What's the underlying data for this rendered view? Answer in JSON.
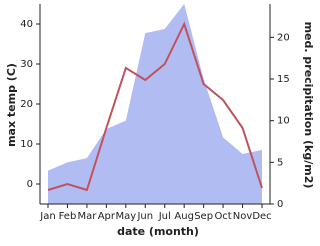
{
  "chart_data": {
    "type": "line",
    "categories": [
      "Jan",
      "Feb",
      "Mar",
      "Apr",
      "May",
      "Jun",
      "Jul",
      "Aug",
      "Sep",
      "Oct",
      "Nov",
      "Dec"
    ],
    "xlabel": "date (month)",
    "ylabel": "max temp (C)",
    "y2label": "med. precipitation (kg/m2)",
    "ylim": [
      -5,
      45
    ],
    "yticks": [
      0,
      10,
      20,
      30,
      40
    ],
    "y2lim": [
      0,
      24
    ],
    "y2ticks": [
      0,
      5,
      10,
      15,
      20
    ],
    "series": [
      {
        "name": "med. precipitation",
        "type": "area",
        "axis": "y2",
        "color": "#b1bdf2",
        "values": [
          4,
          5,
          5.5,
          9,
          10,
          20.5,
          21,
          24,
          15,
          8,
          6,
          6.5
        ]
      },
      {
        "name": "max temp",
        "type": "line",
        "color": "#c0525e",
        "values": [
          -1.5,
          0,
          -1.5,
          14,
          29,
          26,
          30,
          40,
          25,
          21,
          14,
          -1
        ]
      }
    ]
  }
}
